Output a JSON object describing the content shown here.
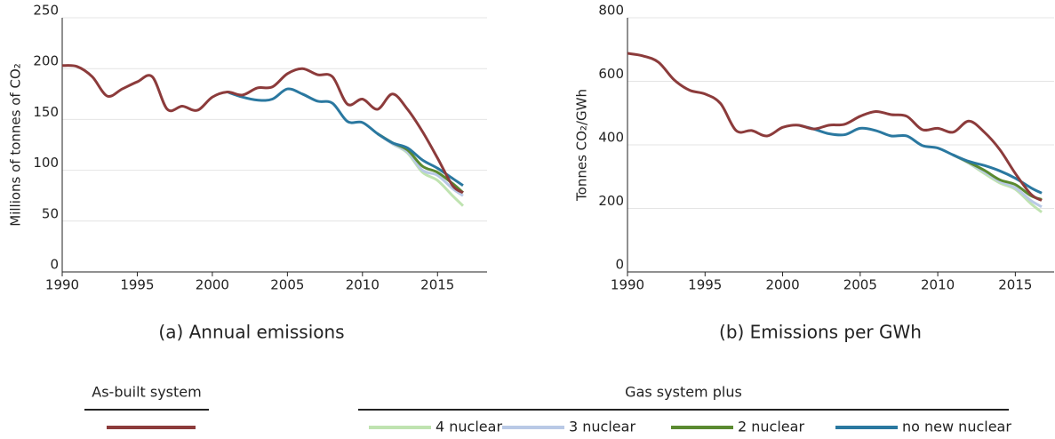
{
  "chart_data": [
    {
      "type": "line",
      "title": "(a) Annual emissions",
      "ylabel": "Millions of tonnes of CO₂",
      "x": [
        1990,
        1991,
        1992,
        1993,
        1994,
        1995,
        1996,
        1997,
        1998,
        1999,
        2000,
        2001,
        2002,
        2003,
        2004,
        2005,
        2006,
        2007,
        2008,
        2009,
        2010,
        2011,
        2012,
        2013,
        2014,
        2015,
        2016,
        2016.7
      ],
      "xlim": [
        1990,
        2018.3
      ],
      "xticks": [
        1990,
        1995,
        2000,
        2005,
        2010,
        2015
      ],
      "ylim": [
        0,
        250
      ],
      "yticks": [
        0,
        50,
        100,
        150,
        200,
        250
      ],
      "grid": true,
      "series": [
        {
          "name": "As-built system",
          "color": "#8c3b3b",
          "values": [
            203,
            202,
            192,
            173,
            180,
            187,
            192,
            160,
            163,
            159,
            172,
            177,
            174,
            181,
            182,
            195,
            200,
            194,
            192,
            165,
            170,
            160,
            175,
            160,
            138,
            112,
            85,
            78
          ]
        },
        {
          "name": "4 nuclear",
          "color": "#bfe3b0",
          "values": [
            null,
            null,
            null,
            null,
            null,
            null,
            null,
            null,
            null,
            null,
            null,
            null,
            null,
            null,
            null,
            null,
            null,
            null,
            null,
            null,
            null,
            136,
            126,
            117,
            98,
            90,
            75,
            65
          ]
        },
        {
          "name": "3 nuclear",
          "color": "#b9c9e6",
          "values": [
            null,
            null,
            null,
            null,
            null,
            null,
            null,
            null,
            null,
            null,
            null,
            null,
            null,
            null,
            null,
            null,
            null,
            null,
            null,
            null,
            null,
            136,
            126,
            118,
            100,
            95,
            82,
            75
          ]
        },
        {
          "name": "2 nuclear",
          "color": "#5a8a30",
          "values": [
            null,
            null,
            null,
            null,
            null,
            null,
            null,
            null,
            null,
            null,
            null,
            null,
            null,
            null,
            null,
            null,
            null,
            null,
            null,
            null,
            null,
            136,
            127,
            120,
            104,
            98,
            87,
            78
          ]
        },
        {
          "name": "no new nuclear",
          "color": "#2a78a0",
          "values": [
            null,
            null,
            null,
            null,
            null,
            null,
            null,
            null,
            null,
            null,
            null,
            177,
            172,
            169,
            170,
            180,
            175,
            168,
            166,
            148,
            147,
            136,
            127,
            122,
            110,
            102,
            92,
            85
          ]
        }
      ]
    },
    {
      "type": "line",
      "title": "(b) Emissions per GWh",
      "ylabel": "Tonnes CO₂/GWh",
      "x": [
        1990,
        1991,
        1992,
        1993,
        1994,
        1995,
        1996,
        1997,
        1998,
        1999,
        2000,
        2001,
        2002,
        2003,
        2004,
        2005,
        2006,
        2007,
        2008,
        2009,
        2010,
        2011,
        2012,
        2013,
        2014,
        2015,
        2016,
        2016.7
      ],
      "xlim": [
        1990,
        2017.5
      ],
      "xticks": [
        1990,
        1995,
        2000,
        2005,
        2010,
        2015
      ],
      "ylim": [
        0,
        800
      ],
      "yticks": [
        0,
        200,
        400,
        600,
        800
      ],
      "grid": true,
      "series": [
        {
          "name": "As-built system",
          "color": "#8c3b3b",
          "values": [
            688,
            680,
            660,
            605,
            572,
            560,
            530,
            445,
            445,
            428,
            455,
            462,
            450,
            462,
            465,
            490,
            505,
            495,
            490,
            448,
            452,
            440,
            475,
            440,
            385,
            310,
            245,
            225
          ]
        },
        {
          "name": "4 nuclear",
          "color": "#bfe3b0",
          "values": [
            null,
            null,
            null,
            null,
            null,
            null,
            null,
            null,
            null,
            null,
            null,
            null,
            null,
            null,
            null,
            null,
            null,
            null,
            null,
            null,
            null,
            368,
            342,
            310,
            280,
            260,
            215,
            188
          ]
        },
        {
          "name": "3 nuclear",
          "color": "#b9c9e6",
          "values": [
            null,
            null,
            null,
            null,
            null,
            null,
            null,
            null,
            null,
            null,
            null,
            null,
            null,
            null,
            null,
            null,
            null,
            null,
            null,
            null,
            null,
            368,
            343,
            315,
            285,
            265,
            225,
            205
          ]
        },
        {
          "name": "2 nuclear",
          "color": "#5a8a30",
          "values": [
            null,
            null,
            null,
            null,
            null,
            null,
            null,
            null,
            null,
            null,
            null,
            null,
            null,
            null,
            null,
            null,
            null,
            null,
            null,
            null,
            null,
            368,
            345,
            320,
            290,
            275,
            240,
            228
          ]
        },
        {
          "name": "no new nuclear",
          "color": "#2a78a0",
          "values": [
            null,
            null,
            null,
            null,
            null,
            null,
            null,
            null,
            null,
            null,
            null,
            462,
            450,
            435,
            432,
            452,
            445,
            428,
            428,
            398,
            390,
            368,
            348,
            335,
            318,
            295,
            265,
            248
          ]
        }
      ]
    }
  ],
  "legend_groups": [
    "As-built system",
    "Gas system plus"
  ]
}
